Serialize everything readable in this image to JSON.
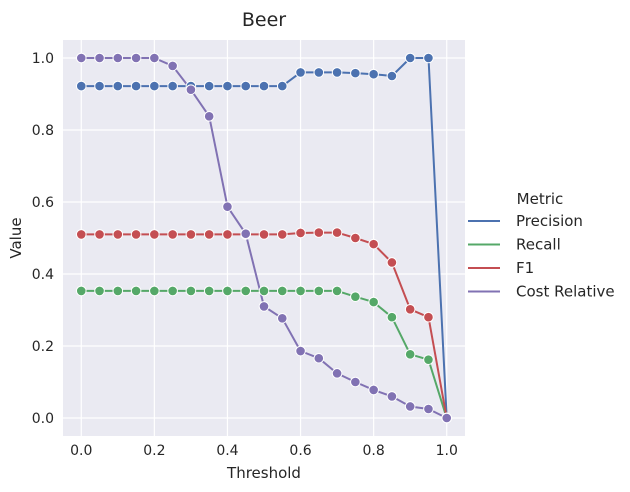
{
  "chart_data": {
    "type": "line",
    "title": "Beer",
    "xlabel": "Threshold",
    "ylabel": "Value",
    "xlim": [
      -0.05,
      1.05
    ],
    "ylim": [
      -0.05,
      1.05
    ],
    "xticks": [
      0.0,
      0.2,
      0.4,
      0.6,
      0.8,
      1.0
    ],
    "xtick_labels": [
      "0.0",
      "0.2",
      "0.4",
      "0.6",
      "0.8",
      "1.0"
    ],
    "yticks": [
      0.0,
      0.2,
      0.4,
      0.6,
      0.8,
      1.0
    ],
    "ytick_labels": [
      "0.0",
      "0.2",
      "0.4",
      "0.6",
      "0.8",
      "1.0"
    ],
    "grid": true,
    "legend": {
      "title": "Metric",
      "placement": "right-outside"
    },
    "x": [
      0.0,
      0.05,
      0.1,
      0.15,
      0.2,
      0.25,
      0.3,
      0.35,
      0.4,
      0.45,
      0.5,
      0.55,
      0.6,
      0.65,
      0.7,
      0.75,
      0.8,
      0.85,
      0.9,
      0.95,
      1.0
    ],
    "series": [
      {
        "name": "Precision",
        "color": "#4c72b0",
        "values": [
          0.922,
          0.922,
          0.922,
          0.922,
          0.922,
          0.922,
          0.922,
          0.922,
          0.922,
          0.922,
          0.922,
          0.922,
          0.96,
          0.96,
          0.96,
          0.958,
          0.955,
          0.95,
          1.0,
          1.0,
          0.0
        ]
      },
      {
        "name": "Recall",
        "color": "#55a868",
        "values": [
          0.353,
          0.353,
          0.353,
          0.353,
          0.353,
          0.353,
          0.353,
          0.353,
          0.353,
          0.353,
          0.353,
          0.353,
          0.353,
          0.353,
          0.353,
          0.337,
          0.322,
          0.28,
          0.177,
          0.162,
          0.0
        ]
      },
      {
        "name": "F1",
        "color": "#c44e52",
        "values": [
          0.51,
          0.51,
          0.51,
          0.51,
          0.51,
          0.51,
          0.51,
          0.51,
          0.51,
          0.51,
          0.51,
          0.51,
          0.514,
          0.515,
          0.515,
          0.5,
          0.483,
          0.432,
          0.302,
          0.28,
          0.0
        ]
      },
      {
        "name": "Cost Relative",
        "color": "#8172b3",
        "values": [
          1.0,
          1.0,
          1.0,
          1.0,
          1.0,
          0.978,
          0.912,
          0.838,
          0.587,
          0.512,
          0.31,
          0.277,
          0.186,
          0.166,
          0.124,
          0.1,
          0.078,
          0.06,
          0.032,
          0.025,
          0.0
        ]
      }
    ]
  }
}
